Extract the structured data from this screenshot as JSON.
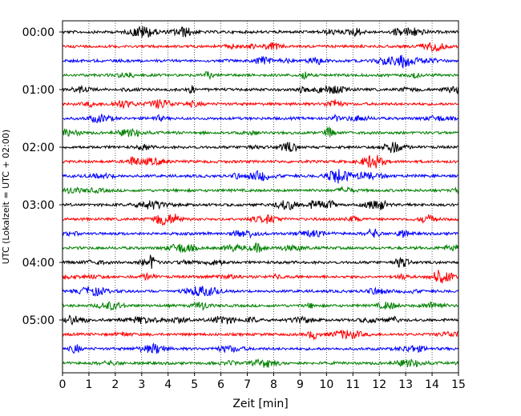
{
  "chart_data": {
    "type": "line",
    "title": "",
    "xlabel": "Zeit  [min]",
    "ylabel": "UTC (Lokalzeit = UTC + 02:00)",
    "xlim": [
      0,
      15
    ],
    "x_ticks": [
      "0",
      "1",
      "2",
      "3",
      "4",
      "5",
      "6",
      "7",
      "8",
      "9",
      "10",
      "11",
      "12",
      "13",
      "14",
      "15"
    ],
    "y_tick_labels": [
      "00:00",
      "01:00",
      "02:00",
      "03:00",
      "04:00",
      "05:00"
    ],
    "rows_per_hour": 4,
    "row_interval_minutes": 15,
    "row_count": 24,
    "trace_colors": [
      "#000000",
      "#ff0000",
      "#0000ff",
      "#008000"
    ],
    "grid": "vertical-dotted"
  }
}
